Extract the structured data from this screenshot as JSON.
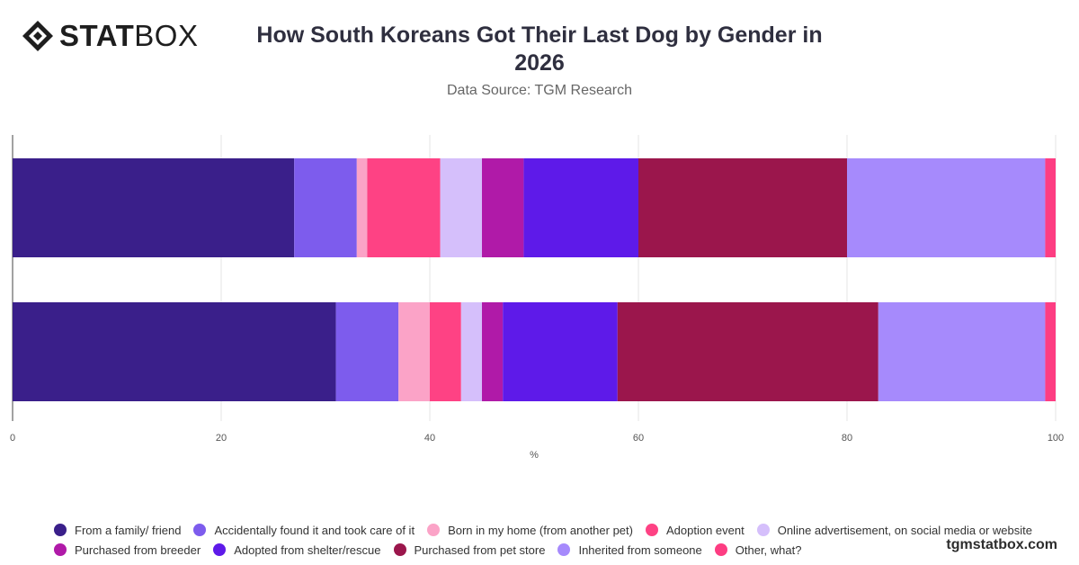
{
  "logo": {
    "bold": "STAT",
    "light": "BOX"
  },
  "brand": "tgmstatbox.com",
  "chart_data": {
    "type": "bar",
    "orientation": "horizontal",
    "stacked": true,
    "title": "How South Koreans Got Their Last Dog by Gender in 2026",
    "subtitle": "Data Source: TGM Research",
    "xlabel": "%",
    "ylabel": "",
    "xlim": [
      0,
      100
    ],
    "xticks": [
      0,
      20,
      40,
      60,
      80,
      100
    ],
    "grid": true,
    "legend_position": "bottom",
    "categories": [
      "",
      ""
    ],
    "series": [
      {
        "name": "From a family/ friend",
        "color": "#3a1f8a",
        "values": [
          27,
          31
        ]
      },
      {
        "name": "Accidentally found it and took care of it",
        "color": "#7d5ced",
        "values": [
          6,
          6
        ]
      },
      {
        "name": "Born in my home (from another pet)",
        "color": "#fba3c7",
        "values": [
          1,
          3
        ]
      },
      {
        "name": "Adoption event",
        "color": "#fe4284",
        "values": [
          7,
          3
        ]
      },
      {
        "name": "Online advertisement, on social media or website",
        "color": "#d5bffb",
        "values": [
          4,
          2
        ]
      },
      {
        "name": "Purchased from breeder",
        "color": "#b01aa8",
        "values": [
          4,
          2
        ]
      },
      {
        "name": "Adopted from shelter/rescue",
        "color": "#5e1ae9",
        "values": [
          11,
          11
        ]
      },
      {
        "name": "Purchased from pet store",
        "color": "#9b164c",
        "values": [
          20,
          25
        ]
      },
      {
        "name": "Inherited from someone",
        "color": "#a68afc",
        "values": [
          19,
          16
        ]
      },
      {
        "name": "Other, what?",
        "color": "#fd3d82",
        "values": [
          1,
          1
        ]
      }
    ]
  }
}
